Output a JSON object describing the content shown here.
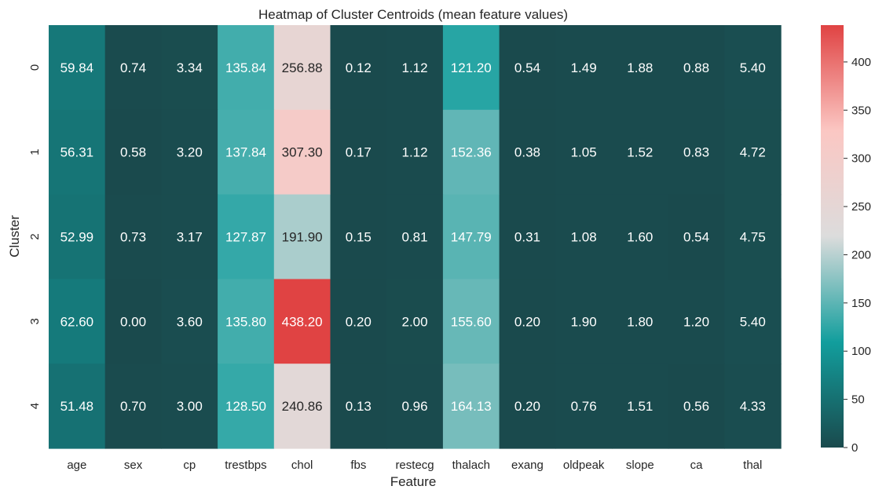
{
  "chart_data": {
    "type": "heatmap",
    "title": "Heatmap of Cluster Centroids (mean feature values)",
    "xlabel": "Feature",
    "ylabel": "Cluster",
    "x_categories": [
      "age",
      "sex",
      "cp",
      "trestbps",
      "chol",
      "fbs",
      "restecg",
      "thalach",
      "exang",
      "oldpeak",
      "slope",
      "ca",
      "thal"
    ],
    "y_categories": [
      "0",
      "1",
      "2",
      "3",
      "4"
    ],
    "values": [
      [
        59.84,
        0.74,
        3.34,
        135.84,
        256.88,
        0.12,
        1.12,
        121.2,
        0.54,
        1.49,
        1.88,
        0.88,
        5.4
      ],
      [
        56.31,
        0.58,
        3.2,
        137.84,
        307.3,
        0.17,
        1.12,
        152.36,
        0.38,
        1.05,
        1.52,
        0.83,
        4.72
      ],
      [
        52.99,
        0.73,
        3.17,
        127.87,
        191.9,
        0.15,
        0.81,
        147.79,
        0.31,
        1.08,
        1.6,
        0.54,
        4.75
      ],
      [
        62.6,
        0.0,
        3.6,
        135.8,
        438.2,
        0.2,
        2.0,
        155.6,
        0.2,
        1.9,
        1.8,
        1.2,
        5.4
      ],
      [
        51.48,
        0.7,
        3.0,
        128.5,
        240.86,
        0.13,
        0.96,
        164.13,
        0.2,
        0.76,
        1.51,
        0.56,
        4.33
      ]
    ],
    "value_format": "2 decimals",
    "colorbar": {
      "vmin": 0,
      "vmax": 438.2,
      "ticks": [
        0,
        50,
        100,
        150,
        200,
        250,
        300,
        350,
        400
      ]
    },
    "colors": {
      "low": "#1a4a4d",
      "mid_teal": "#129e9d",
      "center": "#dcdcdc",
      "mid_pink": "#fbc7c3",
      "high": "#e04343"
    },
    "grid": false
  }
}
